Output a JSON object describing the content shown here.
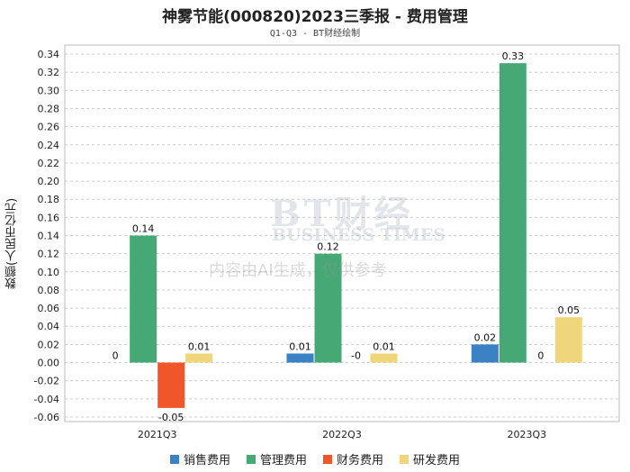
{
  "chart_data": {
    "type": "bar",
    "title": "神雾节能(000820)2023三季报 - 费用管理",
    "subtitle": "Q1-Q3 - BT财经绘制",
    "ylabel": "数额(人民币亿元)",
    "xlabel": "",
    "categories": [
      "2021Q3",
      "2022Q3",
      "2023Q3"
    ],
    "ylim": [
      -0.06,
      0.34
    ],
    "yticks": [
      0.34,
      0.32,
      0.3,
      0.28,
      0.26,
      0.24,
      0.22,
      0.2,
      0.18,
      0.16,
      0.14,
      0.12,
      0.1,
      0.08,
      0.06,
      0.04,
      0.02,
      0.0,
      -0.02,
      -0.04,
      -0.06
    ],
    "ytick_labels": [
      "0.34",
      "0.32",
      "0.30",
      "0.28",
      "0.26",
      "0.24",
      "0.22",
      "0.20",
      "0.18",
      "0.16",
      "0.14",
      "0.12",
      "0.10",
      "0.08",
      "0.06",
      "0.04",
      "0.02",
      "0.00",
      "-0.02",
      "-0.04",
      "-0.06"
    ],
    "grid": true,
    "legend_position": "bottom",
    "series": [
      {
        "name": "销售费用",
        "color": "#3a82c4",
        "values": [
          0,
          0.01,
          0.02
        ],
        "labels": [
          "0",
          "0.01",
          "0.02"
        ]
      },
      {
        "name": "管理费用",
        "color": "#45a875",
        "values": [
          0.14,
          0.12,
          0.33
        ],
        "labels": [
          "0.14",
          "0.12",
          "0.33"
        ]
      },
      {
        "name": "财务费用",
        "color": "#f0562a",
        "values": [
          -0.05,
          0,
          0
        ],
        "labels": [
          "-0.05",
          "-0",
          "0"
        ]
      },
      {
        "name": "研发费用",
        "color": "#efd67a",
        "values": [
          0.01,
          0.01,
          0.05
        ],
        "labels": [
          "0.01",
          "0.01",
          "0.05"
        ]
      }
    ]
  },
  "watermark": {
    "brand": "BT财经",
    "brand_en": "BUSINESS TIMES",
    "note": "内容由AI生成，仅供参考"
  }
}
